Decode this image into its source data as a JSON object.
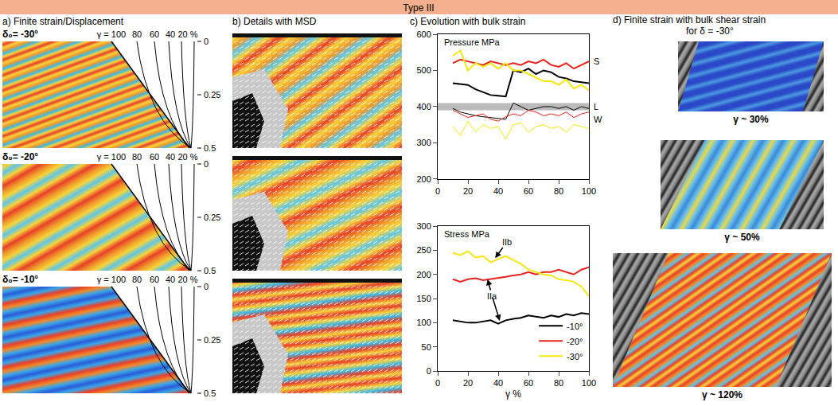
{
  "header": "Type III",
  "panel_a": {
    "title": "a) Finite strain/Displacement",
    "rows": [
      {
        "label": "δ₀= -30°"
      },
      {
        "label": "δ₀= -20°"
      },
      {
        "label": "δ₀= -10°"
      }
    ],
    "strain_labels": [
      "γ = 100",
      "80",
      "60",
      "40",
      "20 %"
    ],
    "depth_ticks": [
      0,
      0.25,
      0.5
    ]
  },
  "panel_b": {
    "title": "b) Details with MSD"
  },
  "panel_c": {
    "title": "c) Evolution with bulk strain"
  },
  "panel_d": {
    "title_lines": [
      "d) Finite strain with  bulk shear strain",
      "for δ = -30°"
    ],
    "captions": [
      "γ ~ 30%",
      "γ ~ 50%",
      "γ ~ 120%"
    ]
  },
  "chart_data": [
    {
      "type": "line",
      "title": "Pressure MPa",
      "x": [
        10,
        15,
        20,
        25,
        30,
        35,
        40,
        45,
        50,
        55,
        60,
        65,
        70,
        75,
        80,
        85,
        90,
        95,
        100
      ],
      "xlim": [
        0,
        100
      ],
      "xticks": [
        0,
        20,
        40,
        60,
        80,
        100
      ],
      "ylim": [
        200,
        600
      ],
      "yticks": [
        200,
        300,
        400,
        500,
        600
      ],
      "grid": false,
      "band": {
        "label": "L",
        "y0": 390,
        "y1": 410
      },
      "side_labels": [
        {
          "text": "S",
          "y": 525
        },
        {
          "text": "L",
          "y": 400
        },
        {
          "text": "W",
          "y": 365
        }
      ],
      "series": [
        {
          "name": "-10°",
          "group": "S",
          "color": "#000000",
          "values": [
            465,
            462,
            460,
            448,
            440,
            432,
            430,
            428,
            500,
            495,
            505,
            490,
            500,
            495,
            482,
            478,
            470,
            468,
            465
          ]
        },
        {
          "name": "-20°",
          "group": "S",
          "color": "#e8231d",
          "values": [
            520,
            530,
            525,
            520,
            515,
            525,
            520,
            515,
            520,
            515,
            525,
            520,
            530,
            515,
            510,
            520,
            505,
            515,
            525
          ]
        },
        {
          "name": "-30°",
          "group": "S",
          "color": "#f5e60f",
          "values": [
            540,
            555,
            500,
            520,
            510,
            520,
            505,
            520,
            500,
            500,
            490,
            480,
            470,
            470,
            460,
            475,
            450,
            460,
            445
          ]
        },
        {
          "name": "-10°",
          "group": "W",
          "color": "#000000",
          "values": [
            395,
            385,
            380,
            375,
            372,
            370,
            368,
            365,
            410,
            400,
            390,
            395,
            400,
            400,
            395,
            400,
            390,
            400,
            395
          ]
        },
        {
          "name": "-20°",
          "group": "W",
          "color": "#e8231d",
          "values": [
            390,
            380,
            370,
            375,
            380,
            365,
            360,
            372,
            380,
            375,
            390,
            385,
            375,
            380,
            375,
            385,
            370,
            380,
            385
          ]
        },
        {
          "name": "-30°",
          "group": "W",
          "color": "#f5e60f",
          "values": [
            345,
            320,
            360,
            330,
            350,
            340,
            345,
            310,
            350,
            355,
            330,
            345,
            350,
            340,
            345,
            330,
            350,
            345,
            340
          ]
        }
      ]
    },
    {
      "type": "line",
      "title": "Stress MPa",
      "x_label": "γ %",
      "x": [
        10,
        15,
        20,
        25,
        30,
        35,
        40,
        45,
        50,
        55,
        60,
        65,
        70,
        75,
        80,
        85,
        90,
        95,
        100
      ],
      "xlim": [
        0,
        100
      ],
      "xticks": [
        0,
        20,
        40,
        60,
        80,
        100
      ],
      "ylim": [
        0,
        300
      ],
      "yticks": [
        0,
        50,
        100,
        150,
        200,
        250,
        300
      ],
      "grid": false,
      "legend": "lower right",
      "annotations": [
        {
          "text": "IIb",
          "x": 46,
          "y": 268,
          "arrows_to": [
            [
              38,
              234
            ]
          ]
        },
        {
          "text": "IIa",
          "x": 36,
          "y": 155,
          "arrows_to": [
            [
              33,
              190
            ],
            [
              41,
              104
            ]
          ]
        }
      ],
      "series": [
        {
          "name": "-10°",
          "color": "#000000",
          "values": [
            105,
            103,
            100,
            100,
            102,
            105,
            98,
            105,
            108,
            110,
            115,
            112,
            110,
            115,
            112,
            118,
            115,
            120,
            118
          ]
        },
        {
          "name": "-20°",
          "color": "#e8231d",
          "values": [
            190,
            185,
            190,
            192,
            188,
            190,
            192,
            195,
            198,
            200,
            205,
            200,
            205,
            205,
            210,
            205,
            200,
            210,
            215
          ]
        },
        {
          "name": "-30°",
          "color": "#f5e60f",
          "values": [
            245,
            240,
            248,
            235,
            238,
            225,
            232,
            238,
            230,
            222,
            210,
            205,
            200,
            198,
            190,
            188,
            185,
            175,
            155
          ]
        }
      ]
    }
  ]
}
